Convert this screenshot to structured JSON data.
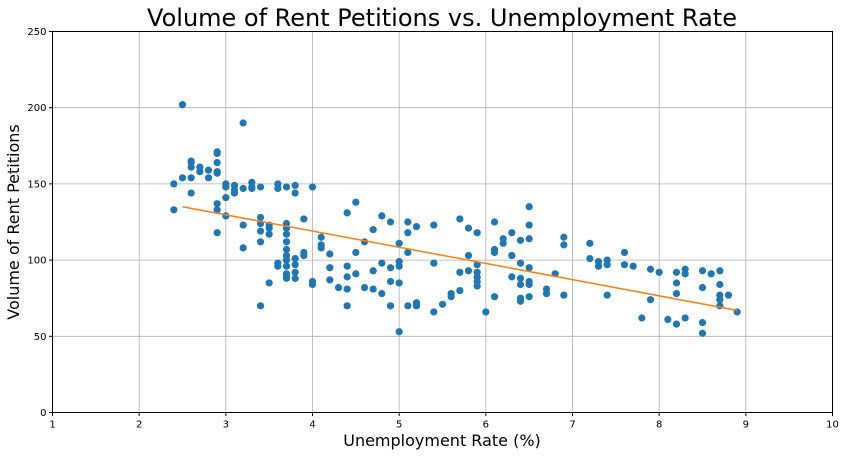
{
  "chart_data": {
    "type": "scatter",
    "title": "Volume of Rent Petitions vs. Unemployment Rate",
    "xlabel": "Unemployment Rate (%)",
    "ylabel": "Volume of Rent Petitions",
    "xlim": [
      1,
      10
    ],
    "ylim": [
      0,
      250
    ],
    "x_ticks": [
      1,
      2,
      3,
      4,
      5,
      6,
      7,
      8,
      9,
      10
    ],
    "y_ticks": [
      0,
      50,
      100,
      150,
      200,
      250
    ],
    "x_tick_labels": [
      "1",
      "2",
      "3",
      "4",
      "5",
      "6",
      "7",
      "8",
      "9",
      "10"
    ],
    "y_tick_labels": [
      "0",
      "50",
      "100",
      "150",
      "200",
      "250"
    ],
    "grid": true,
    "colors": {
      "points": "#1f77b4",
      "trendline": "#ff7f0e",
      "grid": "#b0b0b0"
    },
    "series": [
      {
        "kind": "scatter",
        "points": [
          [
            2.5,
            202
          ],
          [
            2.4,
            150
          ],
          [
            2.4,
            133
          ],
          [
            2.5,
            154
          ],
          [
            2.6,
            144
          ],
          [
            2.6,
            154
          ],
          [
            2.6,
            165
          ],
          [
            2.6,
            164
          ],
          [
            2.6,
            161
          ],
          [
            2.7,
            161
          ],
          [
            2.7,
            158
          ],
          [
            2.8,
            159
          ],
          [
            2.8,
            154
          ],
          [
            2.9,
            164
          ],
          [
            2.9,
            170
          ],
          [
            2.9,
            171
          ],
          [
            2.9,
            158
          ],
          [
            2.9,
            157
          ],
          [
            2.9,
            137
          ],
          [
            2.9,
            133
          ],
          [
            2.9,
            118
          ],
          [
            3.0,
            150
          ],
          [
            3.0,
            148
          ],
          [
            3.0,
            141
          ],
          [
            3.0,
            129
          ],
          [
            3.1,
            149
          ],
          [
            3.1,
            146
          ],
          [
            3.1,
            144
          ],
          [
            3.2,
            190
          ],
          [
            3.2,
            147
          ],
          [
            3.2,
            123
          ],
          [
            3.2,
            108
          ],
          [
            3.3,
            151
          ],
          [
            3.3,
            148
          ],
          [
            3.3,
            147
          ],
          [
            3.4,
            148
          ],
          [
            3.4,
            128
          ],
          [
            3.4,
            124
          ],
          [
            3.4,
            119
          ],
          [
            3.4,
            112
          ],
          [
            3.4,
            70
          ],
          [
            3.5,
            123
          ],
          [
            3.5,
            121
          ],
          [
            3.5,
            117
          ],
          [
            3.5,
            85
          ],
          [
            3.6,
            150
          ],
          [
            3.6,
            147
          ],
          [
            3.6,
            98
          ],
          [
            3.6,
            96
          ],
          [
            3.7,
            148
          ],
          [
            3.7,
            124
          ],
          [
            3.7,
            121
          ],
          [
            3.7,
            117
          ],
          [
            3.7,
            112
          ],
          [
            3.7,
            107
          ],
          [
            3.7,
            103
          ],
          [
            3.7,
            100
          ],
          [
            3.7,
            96
          ],
          [
            3.7,
            91
          ],
          [
            3.7,
            89
          ],
          [
            3.7,
            88
          ],
          [
            3.8,
            149
          ],
          [
            3.8,
            144
          ],
          [
            3.8,
            101
          ],
          [
            3.8,
            97
          ],
          [
            3.8,
            92
          ],
          [
            3.8,
            88
          ],
          [
            3.9,
            127
          ],
          [
            3.9,
            105
          ],
          [
            3.9,
            103
          ],
          [
            4.0,
            148
          ],
          [
            4.0,
            86
          ],
          [
            4.0,
            84
          ],
          [
            4.1,
            115
          ],
          [
            4.1,
            110
          ],
          [
            4.1,
            108
          ],
          [
            4.2,
            104
          ],
          [
            4.2,
            95
          ],
          [
            4.2,
            87
          ],
          [
            4.3,
            82
          ],
          [
            4.4,
            131
          ],
          [
            4.4,
            96
          ],
          [
            4.4,
            89
          ],
          [
            4.4,
            81
          ],
          [
            4.4,
            70
          ],
          [
            4.5,
            138
          ],
          [
            4.5,
            105
          ],
          [
            4.5,
            91
          ],
          [
            4.6,
            112
          ],
          [
            4.6,
            82
          ],
          [
            4.7,
            120
          ],
          [
            4.7,
            93
          ],
          [
            4.7,
            81
          ],
          [
            4.8,
            129
          ],
          [
            4.8,
            98
          ],
          [
            4.8,
            78
          ],
          [
            4.9,
            125
          ],
          [
            4.9,
            95
          ],
          [
            4.9,
            86
          ],
          [
            4.9,
            70
          ],
          [
            5.0,
            111
          ],
          [
            5.0,
            99
          ],
          [
            5.0,
            96
          ],
          [
            5.0,
            85
          ],
          [
            5.0,
            53
          ],
          [
            5.1,
            125
          ],
          [
            5.1,
            118
          ],
          [
            5.1,
            105
          ],
          [
            5.1,
            70
          ],
          [
            5.2,
            122
          ],
          [
            5.2,
            72
          ],
          [
            5.2,
            70
          ],
          [
            5.4,
            123
          ],
          [
            5.4,
            98
          ],
          [
            5.4,
            66
          ],
          [
            5.5,
            71
          ],
          [
            5.6,
            78
          ],
          [
            5.6,
            76
          ],
          [
            5.7,
            127
          ],
          [
            5.7,
            92
          ],
          [
            5.7,
            80
          ],
          [
            5.8,
            121
          ],
          [
            5.8,
            103
          ],
          [
            5.8,
            93
          ],
          [
            5.9,
            118
          ],
          [
            5.9,
            97
          ],
          [
            5.9,
            92
          ],
          [
            5.9,
            89
          ],
          [
            5.9,
            86
          ],
          [
            5.9,
            83
          ],
          [
            6.0,
            66
          ],
          [
            6.1,
            125
          ],
          [
            6.1,
            107
          ],
          [
            6.1,
            105
          ],
          [
            6.1,
            76
          ],
          [
            6.2,
            114
          ],
          [
            6.2,
            111
          ],
          [
            6.3,
            118
          ],
          [
            6.3,
            103
          ],
          [
            6.3,
            89
          ],
          [
            6.4,
            113
          ],
          [
            6.4,
            98
          ],
          [
            6.4,
            88
          ],
          [
            6.4,
            84
          ],
          [
            6.4,
            75
          ],
          [
            6.4,
            73
          ],
          [
            6.5,
            135
          ],
          [
            6.5,
            123
          ],
          [
            6.5,
            114
          ],
          [
            6.5,
            95
          ],
          [
            6.5,
            86
          ],
          [
            6.5,
            84
          ],
          [
            6.5,
            76
          ],
          [
            6.7,
            81
          ],
          [
            6.7,
            78
          ],
          [
            6.8,
            91
          ],
          [
            6.9,
            115
          ],
          [
            6.9,
            110
          ],
          [
            6.9,
            77
          ],
          [
            7.2,
            111
          ],
          [
            7.2,
            101
          ],
          [
            7.3,
            99
          ],
          [
            7.3,
            96
          ],
          [
            7.4,
            100
          ],
          [
            7.4,
            97
          ],
          [
            7.4,
            77
          ],
          [
            7.6,
            105
          ],
          [
            7.6,
            97
          ],
          [
            7.7,
            96
          ],
          [
            7.8,
            62
          ],
          [
            7.9,
            94
          ],
          [
            7.9,
            74
          ],
          [
            8.0,
            92
          ],
          [
            8.1,
            61
          ],
          [
            8.2,
            92
          ],
          [
            8.2,
            85
          ],
          [
            8.2,
            78
          ],
          [
            8.2,
            58
          ],
          [
            8.3,
            94
          ],
          [
            8.3,
            91
          ],
          [
            8.3,
            62
          ],
          [
            8.5,
            93
          ],
          [
            8.5,
            82
          ],
          [
            8.5,
            59
          ],
          [
            8.5,
            52
          ],
          [
            8.6,
            91
          ],
          [
            8.7,
            93
          ],
          [
            8.7,
            84
          ],
          [
            8.7,
            77
          ],
          [
            8.7,
            74
          ],
          [
            8.7,
            70
          ],
          [
            8.8,
            77
          ],
          [
            8.9,
            66
          ]
        ]
      },
      {
        "kind": "line",
        "points": [
          [
            2.5,
            135
          ],
          [
            8.9,
            67
          ]
        ]
      }
    ]
  }
}
